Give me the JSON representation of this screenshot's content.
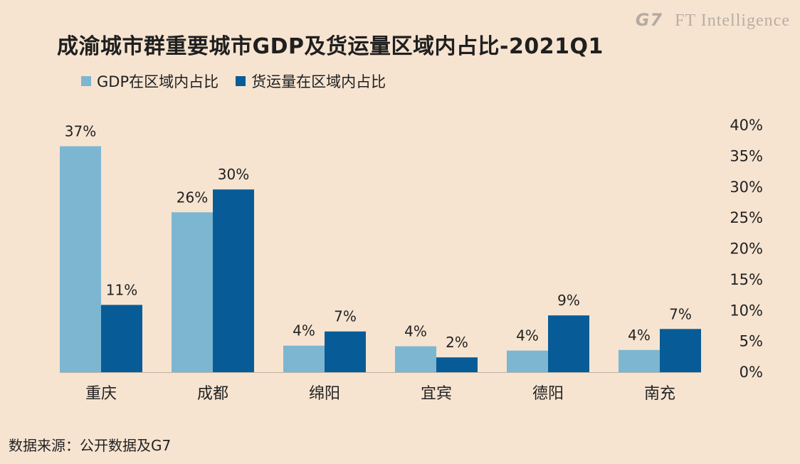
{
  "brand": {
    "g7": "G7",
    "ft": "FT Intelligence"
  },
  "title": "成渝城市群重要城市GDP及货运量区域内占比-2021Q1",
  "source": "数据来源：公开数据及G7",
  "colors": {
    "gdp": "#7db6d1",
    "freight": "#075c98",
    "background": "#f6e4d1"
  },
  "chart_data": {
    "type": "bar",
    "title": "成渝城市群重要城市GDP及货运量区域内占比-2021Q1",
    "categories": [
      "重庆",
      "成都",
      "绵阳",
      "宜宾",
      "德阳",
      "南充"
    ],
    "series": [
      {
        "name": "GDP在区域内占比",
        "values": [
          37,
          26,
          4,
          4,
          4,
          4
        ],
        "exact": [
          36.6,
          25.9,
          4.3,
          4.2,
          3.5,
          3.6
        ],
        "labels": [
          "37%",
          "26%",
          "4%",
          "4%",
          "4%",
          "4%"
        ]
      },
      {
        "name": "货运量在区域内占比",
        "values": [
          11,
          30,
          7,
          2,
          9,
          7
        ],
        "exact": [
          10.9,
          29.6,
          6.6,
          2.4,
          9.2,
          7.0
        ],
        "labels": [
          "11%",
          "30%",
          "7%",
          "2%",
          "9%",
          "7%"
        ]
      }
    ],
    "ylim": [
      0,
      40
    ],
    "yticks": [
      "0%",
      "5%",
      "10%",
      "15%",
      "20%",
      "25%",
      "30%",
      "35%",
      "40%"
    ],
    "y_axis_side": "right",
    "legend_position": "top-left",
    "grid": false
  }
}
